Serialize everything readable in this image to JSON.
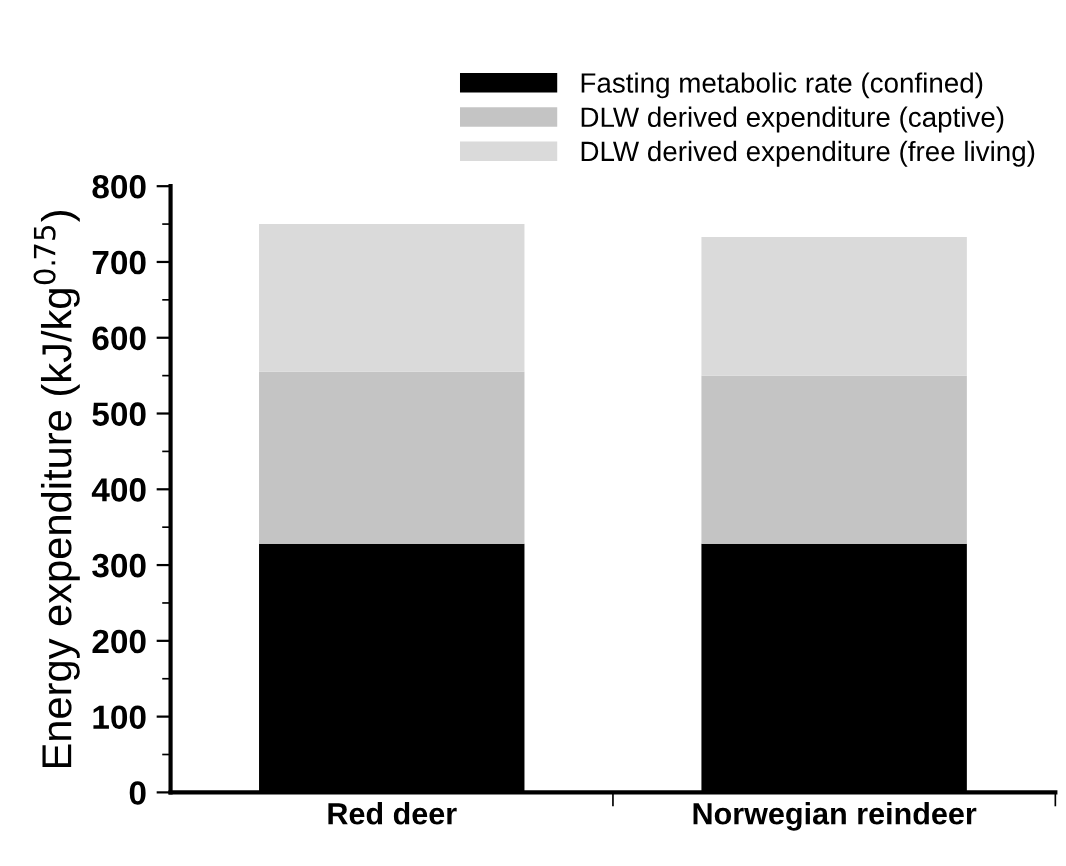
{
  "chart_data": {
    "type": "bar",
    "stacked": true,
    "categories": [
      "Red deer",
      "Norwegian reindeer"
    ],
    "series": [
      {
        "name": "Fasting metabolic rate (confined)",
        "color": "#000000",
        "values": [
          328,
          328
        ]
      },
      {
        "name": "DLW derived expenditure (captive)",
        "color": "#c4c4c4",
        "values": [
          227,
          222
        ]
      },
      {
        "name": "DLW derived expenditure (free living)",
        "color": "#dadada",
        "values": [
          195,
          183
        ]
      }
    ],
    "ylabel": "Energy expenditure (kJ/kg$^{0.75}$)",
    "ylim": [
      0,
      800
    ],
    "yticks": [
      0,
      {
        "value": 50,
        "label": null
      },
      100,
      {
        "value": 150,
        "label": null
      },
      200,
      {
        "value": 250,
        "label": null
      },
      300,
      {
        "value": 350,
        "label": null
      },
      400,
      {
        "value": 450,
        "label": null
      },
      500,
      {
        "value": 550,
        "label": null
      },
      600,
      {
        "value": 650,
        "label": null
      },
      700,
      {
        "value": 750,
        "label": null
      },
      800
    ],
    "legend": "top right",
    "grid": false
  }
}
